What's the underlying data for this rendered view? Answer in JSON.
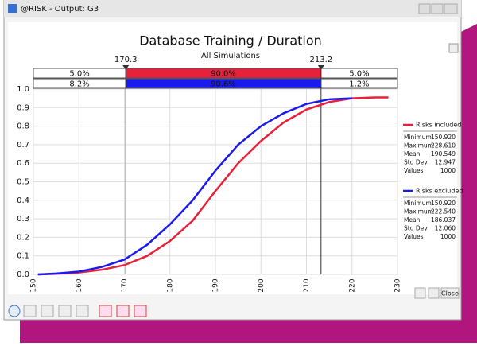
{
  "window": {
    "title": "@RISK - Output: G3",
    "close_button": "Close"
  },
  "chart_data": {
    "type": "line",
    "title": "Database Training / Duration",
    "subtitle": "All Simulations",
    "xlim": [
      150,
      230
    ],
    "xticks": [
      150,
      160,
      170,
      180,
      190,
      200,
      210,
      220,
      230
    ],
    "ylim": [
      0,
      1
    ],
    "yticks": [
      {
        "value": 0,
        "label": "0.0"
      },
      {
        "value": 0.1,
        "label": "0.1"
      },
      {
        "value": 0.2,
        "label": "0.2"
      },
      {
        "value": 0.3,
        "label": "0.3"
      },
      {
        "value": 0.4,
        "label": "0.4"
      },
      {
        "value": 0.5,
        "label": "0.5"
      },
      {
        "value": 0.6,
        "label": "0.6"
      },
      {
        "value": 0.7,
        "label": "0.7"
      },
      {
        "value": 0.8,
        "label": "0.8"
      },
      {
        "value": 0.9,
        "label": "0.9"
      },
      {
        "value": 1,
        "label": "1.0"
      }
    ],
    "grid": true,
    "delimiters": [
      170.3,
      213.2
    ],
    "x": [
      151,
      155,
      160,
      165,
      170,
      175,
      180,
      185,
      190,
      195,
      200,
      205,
      210,
      215,
      220,
      225,
      228
    ],
    "series": [
      {
        "name": "Risks included",
        "color": "#e8203a",
        "values": [
          0,
          0.003,
          0.01,
          0.025,
          0.05,
          0.1,
          0.18,
          0.29,
          0.45,
          0.6,
          0.72,
          0.82,
          0.89,
          0.93,
          0.95,
          0.955,
          0.955
        ],
        "region_values": [
          5.0,
          90.0,
          5.0
        ],
        "region_labels": [
          "5.0%",
          "90.0%",
          "5.0%"
        ],
        "stats": [
          {
            "label": "Minimum",
            "value": "150.920"
          },
          {
            "label": "Maximum",
            "value": "228.610"
          },
          {
            "label": "Mean",
            "value": "190.549"
          },
          {
            "label": "Std Dev",
            "value": "12.947"
          },
          {
            "label": "Values",
            "value": "1000"
          }
        ]
      },
      {
        "name": "Risks excluded",
        "color": "#1a1aee",
        "values": [
          0,
          0.005,
          0.015,
          0.04,
          0.08,
          0.16,
          0.27,
          0.4,
          0.56,
          0.7,
          0.8,
          0.87,
          0.92,
          0.945,
          0.95,
          null,
          null
        ],
        "region_values": [
          8.2,
          90.6,
          1.2
        ],
        "region_labels": [
          "8.2%",
          "90.6%",
          "1.2%"
        ],
        "stats": [
          {
            "label": "Minimum",
            "value": "150.920"
          },
          {
            "label": "Maximum",
            "value": "222.540"
          },
          {
            "label": "Mean",
            "value": "186.037"
          },
          {
            "label": "Std Dev",
            "value": "12.060"
          },
          {
            "label": "Values",
            "value": "1000"
          }
        ]
      }
    ]
  }
}
